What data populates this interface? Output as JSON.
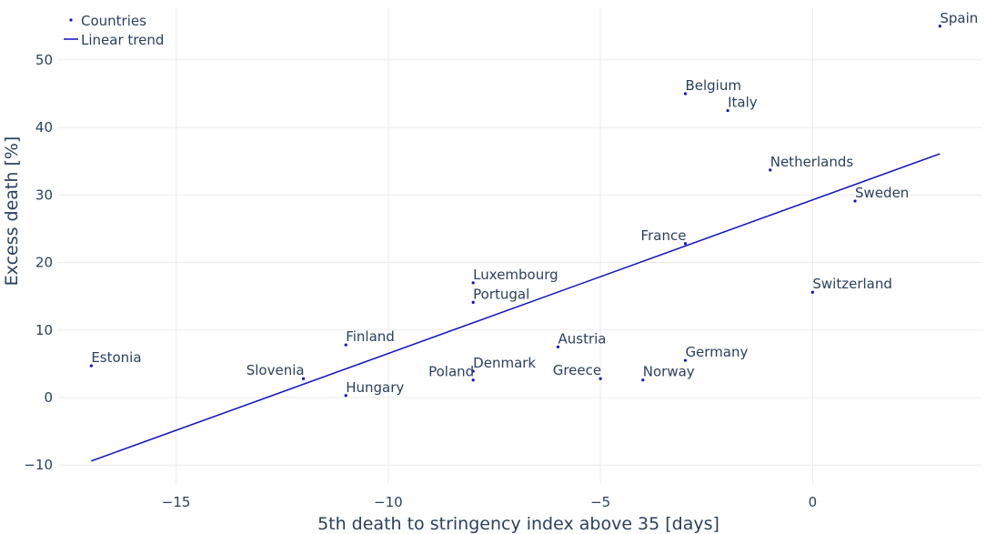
{
  "chart_data": {
    "type": "scatter",
    "xlabel": "5th death to stringency index above 35 [days]",
    "ylabel": "Excess death [%]",
    "xlim": [
      -17.8,
      4
    ],
    "ylim": [
      -12.8,
      57.8
    ],
    "xticks": [
      -15,
      -10,
      -5,
      0
    ],
    "xtick_labels": [
      "−15",
      "−10",
      "−5",
      "0"
    ],
    "yticks": [
      -10,
      0,
      10,
      20,
      30,
      40,
      50
    ],
    "ytick_labels": [
      "−10",
      "0",
      "10",
      "20",
      "30",
      "40",
      "50"
    ],
    "grid": true,
    "legend_position": "top-left",
    "colors": {
      "series": "#1010c8",
      "text": "#2a3f5f",
      "grid": "#ebebeb"
    },
    "series": [
      {
        "name": "Countries",
        "mode": "markers+text",
        "points": [
          {
            "label": "Spain",
            "x": 3,
            "y": 55
          },
          {
            "label": "Belgium",
            "x": -3,
            "y": 45
          },
          {
            "label": "Italy",
            "x": -2,
            "y": 42.5
          },
          {
            "label": "Netherlands",
            "x": -1,
            "y": 33.7
          },
          {
            "label": "Sweden",
            "x": 1,
            "y": 29.1
          },
          {
            "label": "France",
            "x": -3,
            "y": 22.8
          },
          {
            "label": "Switzerland",
            "x": 0,
            "y": 15.6
          },
          {
            "label": "Luxembourg",
            "x": -8,
            "y": 17
          },
          {
            "label": "Portugal",
            "x": -8,
            "y": 14.1
          },
          {
            "label": "Finland",
            "x": -11,
            "y": 7.8
          },
          {
            "label": "Austria",
            "x": -6,
            "y": 7.5
          },
          {
            "label": "Estonia",
            "x": -17,
            "y": 4.7
          },
          {
            "label": "Germany",
            "x": -3,
            "y": 5.5
          },
          {
            "label": "Denmark",
            "x": -8,
            "y": 3.9
          },
          {
            "label": "Norway",
            "x": -4,
            "y": 2.6
          },
          {
            "label": "Slovenia",
            "x": -12,
            "y": 2.8
          },
          {
            "label": "Poland",
            "x": -8,
            "y": 2.6
          },
          {
            "label": "Greece",
            "x": -5,
            "y": 2.8
          },
          {
            "label": "Hungary",
            "x": -11,
            "y": 0.3
          }
        ]
      },
      {
        "name": "Linear trend",
        "mode": "lines",
        "x": [
          -17,
          3
        ],
        "y": [
          -9.4,
          36.1
        ]
      }
    ]
  }
}
